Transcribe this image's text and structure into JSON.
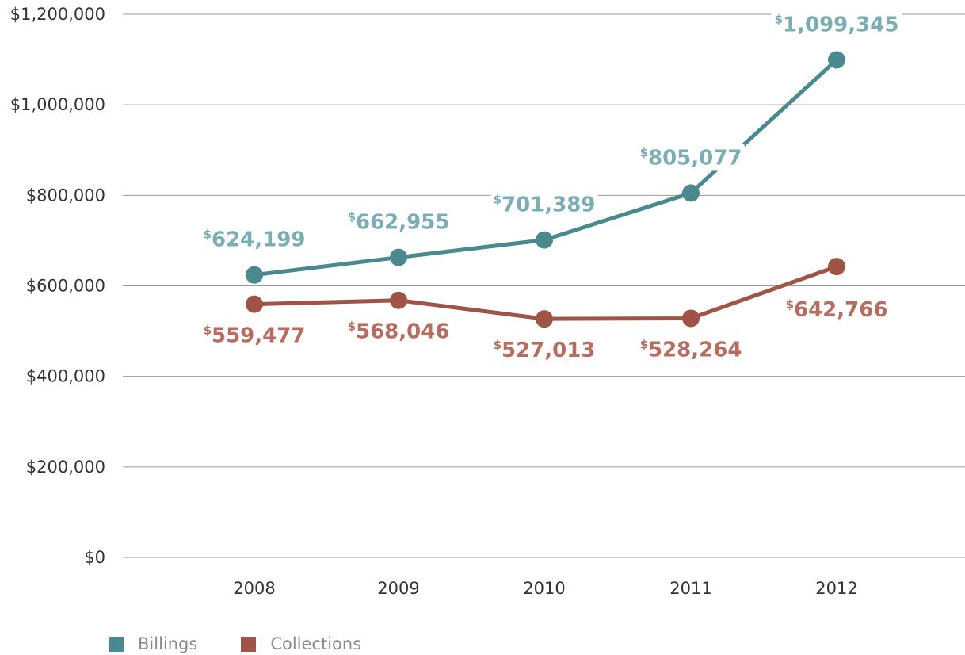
{
  "chart_data": {
    "type": "line",
    "categories": [
      "2008",
      "2009",
      "2010",
      "2011",
      "2012"
    ],
    "ylim": [
      0,
      1200000
    ],
    "yticks": [
      0,
      200000,
      400000,
      600000,
      800000,
      1000000,
      1200000
    ],
    "ytick_labels": [
      "$0",
      "$200,000",
      "$400,000",
      "$600,000",
      "$800,000",
      "$1,000,000",
      "$1,200,000"
    ],
    "grid": true,
    "legend_position": "bottom-left",
    "series": [
      {
        "name": "Billings",
        "color": "#4a8a8f",
        "label_color": "#7aaeb4",
        "values": [
          624199,
          662955,
          701389,
          805077,
          1099345
        ],
        "labels": [
          "624,199",
          "662,955",
          "701,389",
          "805,077",
          "1,099,345"
        ],
        "label_position": "above"
      },
      {
        "name": "Collections",
        "color": "#a05446",
        "label_color": "#b76c60",
        "values": [
          559477,
          568046,
          527013,
          528264,
          642766
        ],
        "labels": [
          "559,477",
          "568,046",
          "527,013",
          "528,264",
          "642,766"
        ],
        "label_position": "below"
      }
    ],
    "currency_symbol": "$"
  },
  "legend": {
    "items": [
      {
        "label": "Billings",
        "color": "#4a8a8f"
      },
      {
        "label": "Collections",
        "color": "#a05446"
      }
    ]
  }
}
